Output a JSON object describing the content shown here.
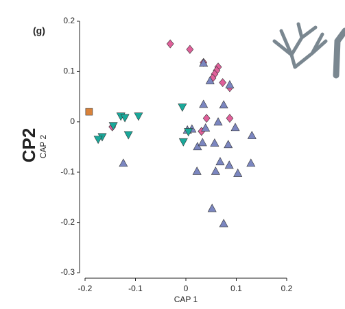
{
  "chart_data": {
    "type": "scatter",
    "panel_label": "(g)",
    "side_label": "CP2",
    "xlabel": "CAP 1",
    "ylabel": "CAP 2",
    "xlim": [
      -0.2,
      0.2
    ],
    "ylim": [
      -0.3,
      0.2
    ],
    "xticks": [
      -0.2,
      -0.1,
      0,
      0.1,
      0.2
    ],
    "yticks": [
      -0.3,
      -0.2,
      -0.1,
      0,
      0.1,
      0.2
    ],
    "series": [
      {
        "color": "#e0609a",
        "marker": "diamond",
        "x": [
          -0.031,
          0.008,
          0.035,
          0.064,
          0.061,
          0.057,
          0.053,
          0.073,
          0.087,
          0.041,
          0.087,
          0.031,
          -0.146
        ],
        "values": [
          0.155,
          0.144,
          0.118,
          0.109,
          0.102,
          0.095,
          0.087,
          0.078,
          0.068,
          0.007,
          0.007,
          -0.019,
          -0.01
        ]
      },
      {
        "color": "#7b86c0",
        "marker": "triangle-up",
        "x": [
          0.035,
          0.048,
          0.087,
          0.035,
          0.075,
          0.012,
          0.039,
          0.064,
          0.098,
          0.131,
          0.023,
          0.033,
          0.057,
          0.084,
          0.068,
          0.022,
          0.059,
          0.086,
          0.103,
          0.129,
          -0.124,
          0.052,
          0.075,
          0.003
        ],
        "values": [
          0.117,
          0.082,
          0.074,
          0.035,
          0.034,
          -0.014,
          -0.012,
          0,
          -0.011,
          -0.027,
          -0.049,
          -0.041,
          -0.042,
          -0.045,
          -0.079,
          -0.098,
          -0.098,
          -0.086,
          -0.102,
          -0.082,
          -0.082,
          -0.172,
          -0.202,
          -0.016
        ]
      },
      {
        "color": "#1aa89a",
        "marker": "triangle-down",
        "x": [
          -0.129,
          -0.121,
          -0.094,
          -0.007,
          -0.166,
          -0.174,
          -0.114,
          -0.144,
          0.005,
          -0.005
        ],
        "values": [
          0.011,
          0.008,
          0.011,
          0.029,
          -0.03,
          -0.035,
          -0.026,
          -0.008,
          -0.02,
          -0.04
        ]
      },
      {
        "color": "#d9823a",
        "marker": "square",
        "x": [
          -0.192
        ],
        "values": [
          0.02
        ]
      }
    ]
  }
}
